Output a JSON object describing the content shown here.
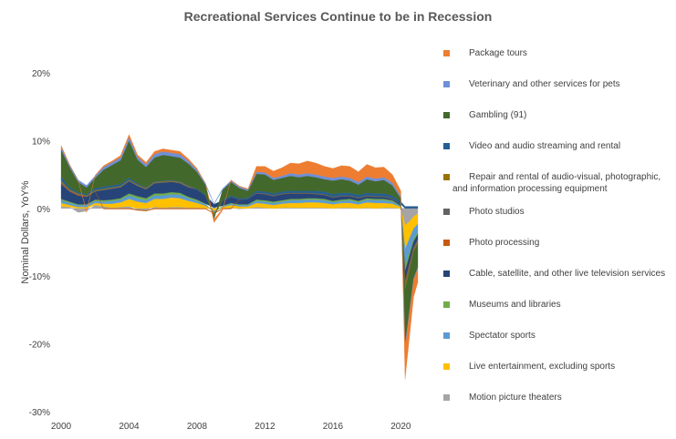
{
  "chart_data": {
    "type": "area",
    "title": "Recreational Services Continue to be in Recession",
    "ylabel": "Nominal Dollars, YoY%",
    "xlabel": "",
    "y_ticks": [
      "20%",
      "10%",
      "0%",
      "-10%",
      "-20%",
      "-30%"
    ],
    "y_tick_values": [
      20,
      10,
      0,
      -10,
      -20,
      -30
    ],
    "ylim": [
      -30,
      20
    ],
    "x_ticks": [
      "2000",
      "2004",
      "2008",
      "2012",
      "2016",
      "2020"
    ],
    "x_tick_values": [
      2000,
      2004,
      2008,
      2012,
      2016,
      2020
    ],
    "xlim": [
      2000,
      2021
    ],
    "x": [
      2000,
      2000.5,
      2001,
      2001.5,
      2002,
      2002.5,
      2003,
      2003.5,
      2004,
      2004.5,
      2005,
      2005.5,
      2006,
      2006.5,
      2007,
      2007.5,
      2008,
      2008.5,
      2009,
      2009.5,
      2010,
      2010.5,
      2011,
      2011.5,
      2012,
      2012.5,
      2013,
      2013.5,
      2014,
      2014.5,
      2015,
      2015.5,
      2016,
      2016.5,
      2017,
      2017.5,
      2018,
      2018.5,
      2019,
      2019.5,
      2020,
      2020.25,
      2020.5,
      2020.75,
      2021
    ],
    "stacked": true,
    "legend_position": "right",
    "series": [
      {
        "name": "Motion picture theaters",
        "color": "#a5a5a5",
        "values": [
          0.3,
          0.2,
          -0.6,
          -0.4,
          0.5,
          0.3,
          0.1,
          0.2,
          0.3,
          -0.2,
          -0.3,
          0.2,
          0.1,
          0.2,
          0.2,
          0.1,
          0.1,
          0.0,
          0.1,
          0.0,
          0.1,
          -0.1,
          0.0,
          0.2,
          0.1,
          0.0,
          0.1,
          0.1,
          0.1,
          0.1,
          0.1,
          0.1,
          0.0,
          0.1,
          0.1,
          0.0,
          0.1,
          0.0,
          0.1,
          0.1,
          0.0,
          -2.5,
          -2.0,
          -1.2,
          -0.8
        ]
      },
      {
        "name": "Live entertainment, excluding sports",
        "color": "#ffc000",
        "values": [
          0.5,
          0.3,
          0.2,
          0.2,
          0.3,
          0.4,
          0.6,
          0.7,
          1.1,
          1.0,
          0.8,
          1.2,
          1.3,
          1.4,
          1.3,
          1.0,
          0.7,
          0.4,
          -0.4,
          0.2,
          0.4,
          0.3,
          0.3,
          0.6,
          0.6,
          0.5,
          0.6,
          0.7,
          0.7,
          0.8,
          0.8,
          0.7,
          0.6,
          0.7,
          0.7,
          0.6,
          0.8,
          0.8,
          0.7,
          0.6,
          0.2,
          -3.5,
          -2.5,
          -1.8,
          -1.5
        ]
      },
      {
        "name": "Spectator sports",
        "color": "#5b9bd5",
        "values": [
          0.4,
          0.3,
          0.3,
          0.3,
          0.3,
          0.3,
          0.4,
          0.4,
          0.5,
          0.5,
          0.4,
          0.5,
          0.5,
          0.5,
          0.5,
          0.4,
          0.3,
          0.2,
          -0.2,
          0.1,
          0.2,
          0.2,
          0.2,
          0.3,
          0.3,
          0.3,
          0.3,
          0.4,
          0.4,
          0.4,
          0.4,
          0.4,
          0.3,
          0.3,
          0.4,
          0.3,
          0.4,
          0.4,
          0.4,
          0.3,
          0.1,
          -2.5,
          -2.0,
          -1.5,
          -1.2
        ]
      },
      {
        "name": "Museums and libraries",
        "color": "#70ad47",
        "values": [
          0.2,
          0.2,
          0.1,
          0.1,
          0.2,
          0.2,
          0.2,
          0.2,
          0.3,
          0.3,
          0.3,
          0.3,
          0.3,
          0.3,
          0.3,
          0.2,
          0.2,
          0.1,
          -0.1,
          0.1,
          0.1,
          0.1,
          0.1,
          0.2,
          0.2,
          0.2,
          0.2,
          0.2,
          0.2,
          0.2,
          0.2,
          0.2,
          0.2,
          0.2,
          0.2,
          0.2,
          0.2,
          0.2,
          0.2,
          0.2,
          0.1,
          -0.8,
          -0.6,
          -0.4,
          -0.3
        ]
      },
      {
        "name": "Cable, satellite, and other live television services",
        "color": "#264478",
        "values": [
          2.2,
          1.5,
          1.3,
          1.1,
          1.2,
          1.5,
          1.6,
          1.6,
          1.8,
          1.5,
          1.3,
          1.5,
          1.6,
          1.5,
          1.4,
          1.4,
          1.5,
          1.2,
          0.5,
          0.7,
          0.9,
          0.7,
          0.8,
          0.9,
          0.9,
          0.8,
          0.9,
          0.8,
          0.8,
          0.7,
          0.6,
          0.6,
          0.5,
          0.5,
          0.4,
          0.4,
          0.3,
          0.3,
          0.3,
          0.2,
          0.2,
          -1.5,
          -1.2,
          -0.9,
          -0.8
        ]
      },
      {
        "name": "Photo processing",
        "color": "#c55a11",
        "values": [
          0.1,
          0.1,
          0.1,
          0.0,
          0.0,
          -0.1,
          -0.1,
          -0.1,
          -0.1,
          -0.1,
          -0.1,
          -0.1,
          -0.1,
          -0.1,
          -0.1,
          -0.1,
          -0.1,
          -0.1,
          -0.1,
          -0.1,
          -0.1,
          0.0,
          0.0,
          0.0,
          0.0,
          0.0,
          0.0,
          0.0,
          0.0,
          0.0,
          0.0,
          0.0,
          0.0,
          0.0,
          0.0,
          0.0,
          0.0,
          0.0,
          0.0,
          0.0,
          0.0,
          -0.3,
          -0.2,
          -0.1,
          -0.1
        ]
      },
      {
        "name": "Photo studios",
        "color": "#636363",
        "values": [
          0.2,
          0.1,
          0.1,
          0.1,
          0.1,
          0.1,
          0.1,
          0.1,
          0.1,
          0.1,
          0.1,
          0.1,
          0.1,
          0.1,
          0.1,
          0.1,
          0.0,
          0.0,
          -0.2,
          0.0,
          0.0,
          0.0,
          0.0,
          0.1,
          0.1,
          0.1,
          0.1,
          0.1,
          0.1,
          0.1,
          0.1,
          0.1,
          0.1,
          0.1,
          0.1,
          0.1,
          0.1,
          0.1,
          0.1,
          0.1,
          0.0,
          -0.6,
          -0.5,
          -0.3,
          -0.3
        ]
      },
      {
        "name": "Repair and rental of audio-visual, photographic, and information processing equipment",
        "color": "#997300",
        "values": [
          0.2,
          0.1,
          0.1,
          0.1,
          0.1,
          0.1,
          0.1,
          0.1,
          0.1,
          0.1,
          0.1,
          0.1,
          0.1,
          0.1,
          0.1,
          0.1,
          0.0,
          0.0,
          -0.1,
          0.0,
          0.0,
          0.0,
          0.0,
          0.0,
          0.0,
          0.0,
          0.0,
          0.0,
          0.0,
          0.0,
          0.0,
          0.0,
          0.0,
          0.0,
          0.0,
          0.0,
          0.0,
          0.0,
          0.0,
          0.0,
          0.0,
          -0.4,
          -0.3,
          -0.2,
          -0.2
        ]
      },
      {
        "name": "Video and audio streaming and rental",
        "color": "#255e91",
        "values": [
          0.6,
          0.3,
          0.2,
          0.2,
          0.3,
          0.3,
          0.3,
          0.3,
          0.3,
          0.2,
          0.1,
          0.1,
          0.1,
          0.1,
          0.1,
          0.1,
          0.1,
          0.1,
          0.0,
          0.1,
          0.2,
          0.2,
          0.2,
          0.3,
          0.3,
          0.3,
          0.3,
          0.3,
          0.3,
          0.3,
          0.4,
          0.4,
          0.4,
          0.4,
          0.4,
          0.4,
          0.4,
          0.4,
          0.4,
          0.4,
          0.4,
          0.3,
          0.3,
          0.3,
          0.3
        ]
      },
      {
        "name": "Gambling (91)",
        "color": "#43682b",
        "values": [
          4.0,
          3.0,
          1.5,
          1.0,
          1.5,
          2.5,
          3.0,
          3.5,
          5.5,
          3.5,
          3.0,
          3.5,
          3.8,
          3.5,
          3.5,
          3.2,
          2.5,
          1.5,
          -0.5,
          1.5,
          2.0,
          1.5,
          1.0,
          2.5,
          2.5,
          2.0,
          2.0,
          2.2,
          2.0,
          2.2,
          2.0,
          1.8,
          2.0,
          2.0,
          1.8,
          1.5,
          2.0,
          1.8,
          2.0,
          1.5,
          0.5,
          -8.0,
          -6.0,
          -4.0,
          -3.5
        ]
      },
      {
        "name": "Veterinary and other services for pets",
        "color": "#6f8fd8",
        "values": [
          0.4,
          0.3,
          0.3,
          0.3,
          0.3,
          0.4,
          0.4,
          0.4,
          0.5,
          0.4,
          0.4,
          0.5,
          0.5,
          0.5,
          0.5,
          0.4,
          0.3,
          0.2,
          0.1,
          0.2,
          0.2,
          0.2,
          0.2,
          0.3,
          0.3,
          0.3,
          0.3,
          0.4,
          0.4,
          0.4,
          0.4,
          0.4,
          0.4,
          0.4,
          0.4,
          0.4,
          0.4,
          0.4,
          0.4,
          0.4,
          0.3,
          -0.6,
          -0.4,
          -0.2,
          -0.2
        ]
      },
      {
        "name": "Package tours",
        "color": "#ed7d31",
        "values": [
          0.2,
          0.1,
          0.0,
          -0.2,
          0.1,
          0.2,
          0.2,
          0.3,
          0.4,
          0.3,
          0.3,
          0.4,
          0.4,
          0.4,
          0.4,
          0.3,
          0.2,
          0.0,
          -0.5,
          -0.2,
          0.1,
          0.1,
          0.1,
          0.8,
          0.9,
          1.0,
          1.2,
          1.5,
          1.6,
          1.8,
          1.7,
          1.5,
          1.4,
          1.6,
          1.7,
          1.5,
          1.8,
          1.6,
          1.5,
          1.2,
          0.8,
          -4.5,
          -3.5,
          -2.5,
          -2.0
        ]
      }
    ]
  }
}
